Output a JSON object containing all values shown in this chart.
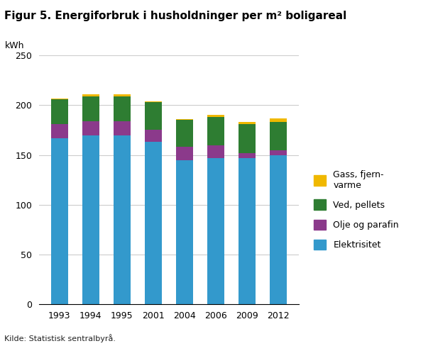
{
  "title": "Figur 5. Energiforbruk i husholdninger per m² boligareal",
  "ylabel": "kWh",
  "source": "Kilde: Statistisk sentralbyrå.",
  "years": [
    "1993",
    "1994",
    "1995",
    "2001",
    "2004",
    "2006",
    "2009",
    "2012"
  ],
  "elektrisitet": [
    167,
    170,
    170,
    163,
    145,
    147,
    147,
    150
  ],
  "olje_parafin": [
    14,
    14,
    14,
    12,
    13,
    13,
    5,
    5
  ],
  "ved_pellets": [
    25,
    25,
    25,
    28,
    27,
    28,
    29,
    28
  ],
  "gass_fjernvarme": [
    1,
    2,
    2,
    1,
    1,
    2,
    2,
    4
  ],
  "colors": {
    "elektrisitet": "#3399CC",
    "olje_parafin": "#8B3A8B",
    "ved_pellets": "#2E7D32",
    "gass_fjernvarme": "#F0B800"
  },
  "ylim": [
    0,
    250
  ],
  "yticks": [
    0,
    50,
    100,
    150,
    200,
    250
  ],
  "title_fontsize": 11,
  "axis_fontsize": 9,
  "legend_fontsize": 9,
  "bar_width": 0.55,
  "background_color": "#ffffff",
  "grid_color": "#cccccc"
}
